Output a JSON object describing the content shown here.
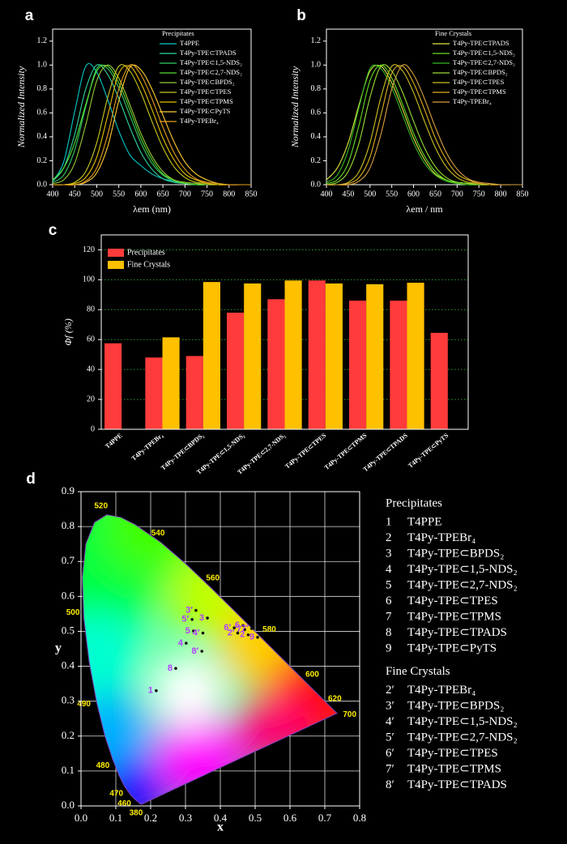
{
  "chart_data": [
    {
      "type": "line",
      "panel": "a",
      "ylabel": "Normalized Intensity",
      "xlabel": "λem (nm)",
      "legend_title": "Precipitates",
      "x": [
        400,
        425,
        450,
        475,
        500,
        525,
        550,
        575,
        600,
        625,
        650,
        675,
        700,
        725,
        750,
        775,
        800,
        825,
        850
      ],
      "xlim": [
        400,
        850
      ],
      "xticks": [
        400,
        450,
        500,
        550,
        600,
        650,
        700,
        750,
        800,
        850
      ],
      "ylim": [
        0,
        1.3
      ],
      "yticks": [
        {
          "value": 0,
          "label": "0.0"
        },
        0.2,
        0.4,
        0.6,
        0.8,
        {
          "value": 1,
          "label": "1.0"
        },
        1.2
      ],
      "series": [
        {
          "name": "T4PPE",
          "color": "#00c8c8",
          "values": [
            0.03,
            0.19,
            0.61,
            0.99,
            0.94,
            0.71,
            0.45,
            0.25,
            0.16,
            0.09,
            0.05,
            0.03,
            0.01,
            0,
            0,
            0,
            0,
            0,
            0
          ]
        },
        {
          "name": "T4Py-TPE⊂TPADS",
          "color": "#2ed6a0",
          "values": [
            0.03,
            0.14,
            0.42,
            0.8,
            1,
            0.92,
            0.72,
            0.48,
            0.27,
            0.13,
            0.05,
            0.02,
            0.01,
            0,
            0,
            0,
            0,
            0,
            0
          ]
        },
        {
          "name": "T4Py-TPE⊂1,5-NDS₂",
          "color": "#33cc66",
          "values": [
            0.02,
            0.08,
            0.29,
            0.65,
            0.97,
            0.97,
            0.81,
            0.58,
            0.35,
            0.18,
            0.08,
            0.03,
            0.01,
            0,
            0,
            0,
            0,
            0,
            0
          ]
        },
        {
          "name": "T4Py-TPE⊂2,7-NDS₂",
          "color": "#55dd33",
          "values": [
            0.04,
            0.14,
            0.35,
            0.67,
            0.95,
            0.99,
            0.85,
            0.63,
            0.39,
            0.21,
            0.09,
            0.04,
            0.01,
            0,
            0,
            0,
            0,
            0,
            0
          ]
        },
        {
          "name": "T4Py-TPE⊂BPDS₂",
          "color": "#99cc33",
          "values": [
            0.01,
            0.04,
            0.18,
            0.5,
            0.87,
            1,
            0.89,
            0.67,
            0.43,
            0.24,
            0.11,
            0.04,
            0.02,
            0.01,
            0,
            0,
            0,
            0,
            0
          ]
        },
        {
          "name": "T4Py-TPE⊂TPES",
          "color": "#c8c820",
          "values": [
            0,
            0,
            0.02,
            0.11,
            0.35,
            0.73,
            0.99,
            0.95,
            0.77,
            0.53,
            0.31,
            0.15,
            0.06,
            0.02,
            0.01,
            0,
            0,
            0,
            0
          ]
        },
        {
          "name": "T4Py-TPE⊂TPMS",
          "color": "#e6c000",
          "values": [
            0,
            0,
            0.01,
            0.06,
            0.23,
            0.58,
            0.93,
            0.99,
            0.85,
            0.63,
            0.39,
            0.21,
            0.09,
            0.04,
            0.01,
            0,
            0,
            0,
            0
          ]
        },
        {
          "name": "T4Py-TPE⊂PyTS",
          "color": "#ffcc33",
          "values": [
            0,
            0,
            0,
            0.02,
            0.1,
            0.32,
            0.7,
            0.98,
            0.96,
            0.8,
            0.58,
            0.36,
            0.19,
            0.09,
            0.04,
            0.01,
            0,
            0,
            0
          ]
        },
        {
          "name": "T4Py-TPEBr₄",
          "color": "#e6a020",
          "values": [
            0,
            0,
            0,
            0.03,
            0.14,
            0.42,
            0.8,
            1,
            0.92,
            0.72,
            0.48,
            0.27,
            0.13,
            0.05,
            0.02,
            0.01,
            0,
            0,
            0
          ]
        }
      ]
    },
    {
      "type": "line",
      "panel": "b",
      "ylabel": "Normalized Intensity",
      "xlabel": "λem / nm",
      "legend_title": "Fine Crystals",
      "x": [
        400,
        425,
        450,
        475,
        500,
        525,
        550,
        575,
        600,
        625,
        650,
        675,
        700,
        725,
        750,
        775,
        800,
        825,
        850
      ],
      "xlim": [
        400,
        850
      ],
      "xticks": [
        400,
        450,
        500,
        550,
        600,
        650,
        700,
        750,
        800,
        850
      ],
      "ylim": [
        0,
        1.3
      ],
      "yticks": [
        {
          "value": 0,
          "label": "0.0"
        },
        0.2,
        0.4,
        0.6,
        0.8,
        {
          "value": 1,
          "label": "1.0"
        },
        1.2
      ],
      "series": [
        {
          "name": "T4Py-TPE⊂TPADS",
          "color": "#dde844",
          "values": [
            0.04,
            0.14,
            0.35,
            0.67,
            0.95,
            0.99,
            0.85,
            0.63,
            0.39,
            0.21,
            0.09,
            0.04,
            0.01,
            0,
            0,
            0,
            0,
            0,
            0
          ]
        },
        {
          "name": "T4Py-TPE⊂1,5-NDS₂",
          "color": "#66dd22",
          "values": [
            0.01,
            0.04,
            0.18,
            0.5,
            0.87,
            1,
            0.89,
            0.67,
            0.43,
            0.24,
            0.11,
            0.04,
            0.02,
            0.01,
            0,
            0,
            0,
            0,
            0
          ]
        },
        {
          "name": "T4Py-TPE⊂2,7-NDS₂",
          "color": "#33bb22",
          "values": [
            0.02,
            0.08,
            0.29,
            0.65,
            0.97,
            0.97,
            0.81,
            0.58,
            0.35,
            0.18,
            0.08,
            0.03,
            0.01,
            0,
            0,
            0,
            0,
            0,
            0
          ]
        },
        {
          "name": "T4Py-TPE⊂BPDS₂",
          "color": "#99dd33",
          "values": [
            0,
            0.02,
            0.11,
            0.35,
            0.73,
            0.99,
            0.95,
            0.77,
            0.53,
            0.31,
            0.15,
            0.06,
            0.02,
            0.01,
            0,
            0,
            0,
            0,
            0
          ]
        },
        {
          "name": "T4Py-TPE⊂TPES",
          "color": "#ccc020",
          "values": [
            0,
            0,
            0.02,
            0.11,
            0.35,
            0.73,
            0.99,
            0.95,
            0.77,
            0.53,
            0.31,
            0.15,
            0.06,
            0.02,
            0.01,
            0,
            0,
            0,
            0
          ]
        },
        {
          "name": "T4Py-TPE⊂TPMS",
          "color": "#e0b020",
          "values": [
            0,
            0,
            0.01,
            0.06,
            0.23,
            0.58,
            0.93,
            0.99,
            0.85,
            0.63,
            0.39,
            0.21,
            0.09,
            0.04,
            0.01,
            0,
            0,
            0,
            0
          ]
        },
        {
          "name": "T4Py-TPEBr₄",
          "color": "#d9a040",
          "values": [
            0,
            0,
            0,
            0.03,
            0.14,
            0.42,
            0.8,
            1,
            0.92,
            0.72,
            0.48,
            0.27,
            0.13,
            0.05,
            0.02,
            0.01,
            0,
            0,
            0
          ]
        }
      ]
    },
    {
      "type": "bar",
      "panel": "c",
      "ylabel": "Φf (%)",
      "grid": true,
      "categories": [
        "T4PPE",
        "T4Py-TPEBr₄",
        "T4Py-TPE⊂BPDS₂",
        "T4Py-TPE⊂1,5-NDS₂",
        "T4Py-TPE⊂2,7-NDS₂",
        "T4Py-TPE⊂TPES",
        "T4Py-TPE⊂TPMS",
        "T4Py-TPE⊂TPADS",
        "T4Py-TPE⊂PyTS"
      ],
      "ylim": [
        0,
        130
      ],
      "yticks": [
        0,
        20,
        40,
        60,
        80,
        100,
        120
      ],
      "series": [
        {
          "name": "Precipitates",
          "color": "#ff3b3b",
          "values": [
            57.5,
            48,
            49,
            78,
            87,
            99.5,
            86,
            86,
            64.5
          ]
        },
        {
          "name": "Fine Crystals",
          "color": "#ffc000",
          "values": [
            null,
            61.5,
            98.5,
            97.5,
            99.5,
            97.5,
            97,
            98,
            null
          ]
        }
      ]
    },
    {
      "type": "scatter",
      "panel": "d",
      "xlabel": "x",
      "ylabel": "y",
      "xlim": [
        0,
        0.8
      ],
      "xticks": [
        {
          "value": 0,
          "label": "0.0"
        },
        0.1,
        0.2,
        0.3,
        0.4,
        0.5,
        0.6,
        0.7,
        0.8
      ],
      "ylim": [
        0,
        0.9
      ],
      "yticks": [
        {
          "value": 0,
          "label": "0.0"
        },
        0.1,
        0.2,
        0.3,
        0.4,
        0.5,
        0.6,
        0.7,
        0.8,
        0.9
      ],
      "grid": true,
      "spectral_locus": [
        {
          "x": 0.1741,
          "y": 0.005,
          "nm": 380
        },
        {
          "x": 0.1714,
          "y": 0.0051
        },
        {
          "x": 0.1566,
          "y": 0.0177
        },
        {
          "x": 0.144,
          "y": 0.0297,
          "nm": 460
        },
        {
          "x": 0.1241,
          "y": 0.0578,
          "nm": 470
        },
        {
          "x": 0.1096,
          "y": 0.0868
        },
        {
          "x": 0.0913,
          "y": 0.1327,
          "nm": 480
        },
        {
          "x": 0.0687,
          "y": 0.2007
        },
        {
          "x": 0.0454,
          "y": 0.295,
          "nm": 490
        },
        {
          "x": 0.0235,
          "y": 0.4127
        },
        {
          "x": 0.0082,
          "y": 0.5384,
          "nm": 500
        },
        {
          "x": 0.0039,
          "y": 0.6548
        },
        {
          "x": 0.0139,
          "y": 0.7502
        },
        {
          "x": 0.0389,
          "y": 0.812
        },
        {
          "x": 0.0743,
          "y": 0.8338,
          "nm": 520
        },
        {
          "x": 0.1142,
          "y": 0.8262
        },
        {
          "x": 0.1547,
          "y": 0.8059
        },
        {
          "x": 0.2296,
          "y": 0.7543,
          "nm": 540
        },
        {
          "x": 0.3016,
          "y": 0.6923
        },
        {
          "x": 0.3731,
          "y": 0.6245,
          "nm": 560
        },
        {
          "x": 0.4441,
          "y": 0.5547
        },
        {
          "x": 0.5125,
          "y": 0.4866,
          "nm": 580
        },
        {
          "x": 0.5752,
          "y": 0.4242
        },
        {
          "x": 0.627,
          "y": 0.3725,
          "nm": 600
        },
        {
          "x": 0.6915,
          "y": 0.3083,
          "nm": 620
        },
        {
          "x": 0.719,
          "y": 0.2809
        },
        {
          "x": 0.7347,
          "y": 0.2653,
          "nm": 700
        }
      ],
      "point_labels": [
        "1",
        "2",
        "3",
        "4",
        "5",
        "6",
        "7",
        "8",
        "9",
        "2′",
        "3′",
        "4′",
        "5′",
        "6′",
        "7′",
        "8′"
      ],
      "x": [
        0.216,
        0.48,
        0.363,
        0.302,
        0.323,
        0.465,
        0.47,
        0.272,
        0.507,
        0.45,
        0.33,
        0.35,
        0.319,
        0.44,
        0.49,
        0.347
      ],
      "values": [
        0.33,
        0.49,
        0.538,
        0.466,
        0.501,
        0.517,
        0.505,
        0.394,
        0.483,
        0.495,
        0.56,
        0.495,
        0.534,
        0.51,
        0.508,
        0.443
      ],
      "legend": [
        {
          "title": "Precipitates",
          "items": [
            {
              "key": "1",
              "label": "T4PPE"
            },
            {
              "key": "2",
              "label": "T4Py-TPEBr₄"
            },
            {
              "key": "3",
              "label": "T4Py-TPE⊂BPDS₂"
            },
            {
              "key": "4",
              "label": "T4Py-TPE⊂1,5-NDS₂"
            },
            {
              "key": "5",
              "label": "T4Py-TPE⊂2,7-NDS₂"
            },
            {
              "key": "6",
              "label": "T4Py-TPE⊂TPES"
            },
            {
              "key": "7",
              "label": "T4Py-TPE⊂TPMS"
            },
            {
              "key": "8",
              "label": "T4Py-TPE⊂TPADS"
            },
            {
              "key": "9",
              "label": "T4Py-TPE⊂PyTS"
            }
          ]
        },
        {
          "title": "Fine Crystals",
          "items": [
            {
              "key": "2′",
              "label": "T4Py-TPEBr₄"
            },
            {
              "key": "3′",
              "label": "T4Py-TPE⊂BPDS₂"
            },
            {
              "key": "4′",
              "label": "T4Py-TPE⊂1,5-NDS₂"
            },
            {
              "key": "5′",
              "label": "T4Py-TPE⊂2,7-NDS₂"
            },
            {
              "key": "6′",
              "label": "T4Py-TPE⊂TPES"
            },
            {
              "key": "7′",
              "label": "T4Py-TPE⊂TPMS"
            },
            {
              "key": "8′",
              "label": "T4Py-TPE⊂TPADS"
            }
          ]
        }
      ]
    }
  ]
}
